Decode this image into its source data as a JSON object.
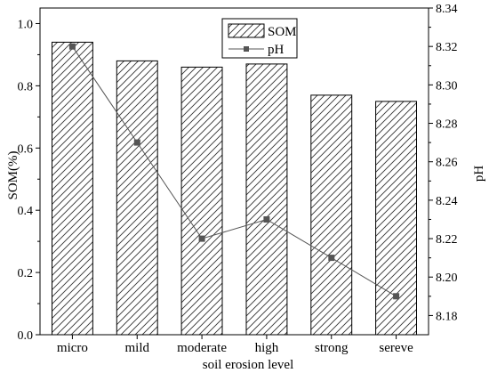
{
  "chart_data": {
    "type": "bar",
    "categories": [
      "micro",
      "mild",
      "moderate",
      "high",
      "strong",
      "sereve"
    ],
    "xlabel": "soil erosion level",
    "series": [
      {
        "name": "SOM",
        "type": "bar",
        "axis": "left",
        "fill": "diagonal hatch",
        "values": [
          0.94,
          0.88,
          0.86,
          0.87,
          0.77,
          0.75
        ]
      },
      {
        "name": "pH",
        "type": "line",
        "axis": "right",
        "marker": "square",
        "color": "#555555",
        "values": [
          8.32,
          8.27,
          8.22,
          8.23,
          8.21,
          8.19
        ]
      }
    ],
    "y_left": {
      "label": "SOM(%)",
      "range": [
        0,
        1.05
      ],
      "ticks": [
        "0.0",
        "0.2",
        "0.4",
        "0.6",
        "0.8",
        "1.0"
      ]
    },
    "y_right": {
      "label": "pH",
      "range": [
        8.17,
        8.34
      ],
      "ticks": [
        "8.18",
        "8.20",
        "8.22",
        "8.24",
        "8.26",
        "8.28",
        "8.30",
        "8.32",
        "8.34"
      ]
    },
    "legend": {
      "position": "top-center",
      "entries": [
        "SOM",
        "pH"
      ]
    },
    "grid": false
  }
}
